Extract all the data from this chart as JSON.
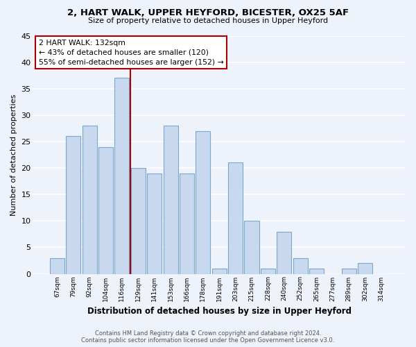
{
  "title": "2, HART WALK, UPPER HEYFORD, BICESTER, OX25 5AF",
  "subtitle": "Size of property relative to detached houses in Upper Heyford",
  "xlabel": "Distribution of detached houses by size in Upper Heyford",
  "ylabel": "Number of detached properties",
  "categories": [
    "67sqm",
    "79sqm",
    "92sqm",
    "104sqm",
    "116sqm",
    "129sqm",
    "141sqm",
    "153sqm",
    "166sqm",
    "178sqm",
    "191sqm",
    "203sqm",
    "215sqm",
    "228sqm",
    "240sqm",
    "252sqm",
    "265sqm",
    "277sqm",
    "289sqm",
    "302sqm",
    "314sqm"
  ],
  "values": [
    3,
    26,
    28,
    24,
    37,
    20,
    19,
    28,
    19,
    27,
    1,
    21,
    10,
    1,
    8,
    3,
    1,
    0,
    1,
    2,
    0
  ],
  "bar_color": "#c8d8ee",
  "bar_edge_color": "#7aa8cc",
  "highlight_line_color": "#aa0000",
  "annotation_title": "2 HART WALK: 132sqm",
  "annotation_line1": "← 43% of detached houses are smaller (120)",
  "annotation_line2": "55% of semi-detached houses are larger (152) →",
  "annotation_box_color": "#ffffff",
  "annotation_box_edge": "#aa0000",
  "ylim": [
    0,
    45
  ],
  "yticks": [
    0,
    5,
    10,
    15,
    20,
    25,
    30,
    35,
    40,
    45
  ],
  "background_color": "#eef2fa",
  "grid_color": "#ffffff",
  "footer_line1": "Contains HM Land Registry data © Crown copyright and database right 2024.",
  "footer_line2": "Contains public sector information licensed under the Open Government Licence v3.0."
}
